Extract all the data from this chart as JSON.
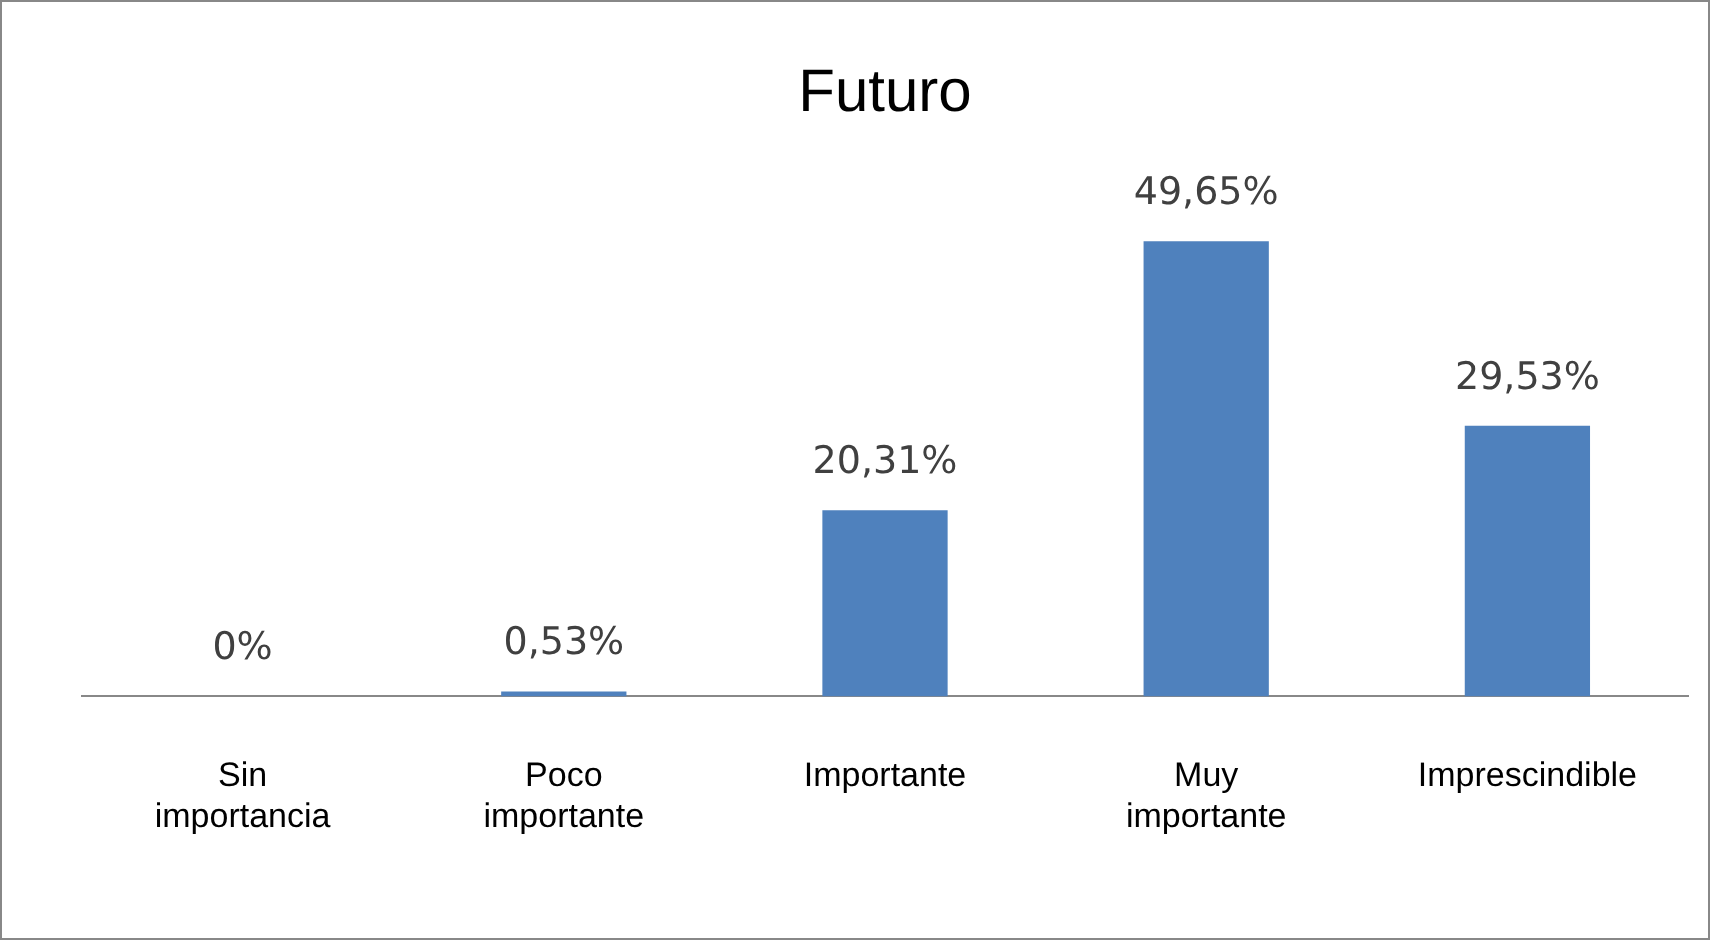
{
  "chart_data": {
    "type": "bar",
    "title": "Futuro",
    "categories": [
      "Sin importancia",
      "Poco importante",
      "Importante",
      "Muy importante",
      "Imprescindible"
    ],
    "values": [
      0,
      0.53,
      20.31,
      49.65,
      29.53
    ],
    "value_labels": [
      "0%",
      "0,53%",
      "20,31%",
      "49,65%",
      "29,53%"
    ],
    "color": "#4f81bd",
    "grid": false,
    "legend": false,
    "tick_labels": "x"
  }
}
